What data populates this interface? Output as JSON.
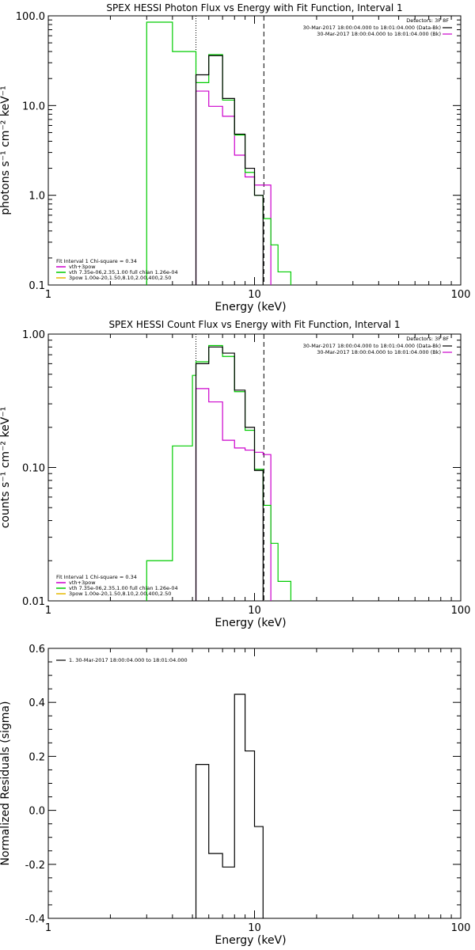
{
  "colors": {
    "total": "#000000",
    "vth_3pow": "#cc00cc",
    "vth": "#00cc00",
    "3pow": "#e6b800"
  },
  "chart_data": [
    {
      "type": "line",
      "title": "SPEX HESSI Photon Flux vs Energy with Fit Function, Interval 1",
      "xlabel": "Energy (keV)",
      "ylabel": "photons s⁻¹ cm⁻² keV⁻¹",
      "xscale": "log",
      "yscale": "log",
      "xlim": [
        1,
        100
      ],
      "ylim": [
        0.1,
        100
      ],
      "xticklabels": [
        "1",
        "10",
        "100"
      ],
      "yticks": [
        0.1,
        1,
        10,
        100
      ],
      "yticklabels": [
        "0.1",
        "1.0",
        "10.0",
        "100.0"
      ],
      "fit_range_keV": [
        5.2,
        11.1
      ],
      "bin_edges_keV": [
        3,
        4,
        5,
        5.2,
        6,
        7,
        8,
        9,
        10,
        11,
        12,
        13,
        15
      ],
      "series": [
        {
          "name": "vth+3pow",
          "color_key": "vth_3pow",
          "x0": 5.2,
          "values": [
            14.5,
            9.8,
            7.6,
            2.8,
            1.6,
            1.3,
            1.3
          ]
        },
        {
          "name": "vth 7.35e-06,2.35,1.00  full chian 1.26e-04",
          "color_key": "vth",
          "x0": 3,
          "values": [
            85,
            40,
            40,
            18,
            37,
            11.5,
            4.7,
            1.8,
            1.0,
            0.55,
            0.28,
            0.14
          ]
        },
        {
          "name": "3pow 1.00e-20,1.50,8.10,2.00,400,2.50",
          "color_key": "3pow",
          "x0": 5.2,
          "values": []
        },
        {
          "name": "data",
          "color_key": "total",
          "x0": 5.2,
          "values": [
            22,
            36,
            12,
            4.8,
            2.0,
            1.0
          ]
        }
      ],
      "legend_right": {
        "title": "Detectors: 3F 8F",
        "rows": [
          "30-Mar-2017 18:00:04.000 to 18:01:04.000 (Data-Bk)",
          "30-Mar-2017 18:00:04.000 to 18:01:04.000 (Bk)"
        ]
      },
      "legend_left": {
        "title": "Fit Interval 1    Chi-square = 0.34"
      }
    },
    {
      "type": "line",
      "title": "SPEX HESSI Count Flux vs Energy with Fit Function, Interval 1",
      "xlabel": "Energy (keV)",
      "ylabel": "counts s⁻¹ cm⁻² keV⁻¹",
      "xscale": "log",
      "yscale": "log",
      "xlim": [
        1,
        100
      ],
      "ylim": [
        0.01,
        1
      ],
      "xticklabels": [
        "1",
        "10",
        "100"
      ],
      "yticks": [
        0.01,
        0.1,
        1
      ],
      "yticklabels": [
        "0.01",
        "0.10",
        "1.00"
      ],
      "fit_range_keV": [
        5.2,
        11.1
      ],
      "bin_edges_keV": [
        3,
        4,
        5,
        5.2,
        6,
        7,
        8,
        9,
        10,
        11,
        12,
        13,
        15
      ],
      "series": [
        {
          "name": "vth+3pow",
          "color_key": "vth_3pow",
          "x0": 5.2,
          "values": [
            0.39,
            0.31,
            0.16,
            0.14,
            0.135,
            0.13,
            0.125
          ]
        },
        {
          "name": "vth 7.35e-06,2.35,1.00  full chian 1.26e-04",
          "color_key": "vth",
          "x0": 3,
          "values": [
            0.02,
            0.145,
            0.49,
            0.62,
            0.82,
            0.68,
            0.37,
            0.19,
            0.097,
            0.052,
            0.027,
            0.014
          ]
        },
        {
          "name": "3pow 1.00e-20,1.50,8.10,2.00,400,2.50",
          "color_key": "3pow",
          "x0": 5.2,
          "values": []
        },
        {
          "name": "data",
          "color_key": "total",
          "x0": 5.2,
          "values": [
            0.6,
            0.8,
            0.72,
            0.38,
            0.2,
            0.095
          ]
        }
      ],
      "legend_right": {
        "title": "Detectors: 3F 8F",
        "rows": [
          "30-Mar-2017 18:00:04.000 to 18:01:04.000 (Data-Bk)",
          "30-Mar-2017 18:00:04.000 to 18:01:04.000 (Bk)"
        ]
      },
      "legend_left": {
        "title": "Fit Interval 1    Chi-square = 0.34"
      }
    },
    {
      "type": "line",
      "title": "",
      "xlabel": "Energy (keV)",
      "ylabel": "Normalized Residuals (sigma)",
      "xscale": "log",
      "yscale": "linear",
      "xlim": [
        1,
        100
      ],
      "ylim": [
        -0.4,
        0.6
      ],
      "xticklabels": [
        "1",
        "10",
        "100"
      ],
      "yticks": [
        -0.4,
        -0.2,
        0.0,
        0.2,
        0.4,
        0.6
      ],
      "yticklabels": [
        "-0.4",
        "-0.2",
        "0.0",
        "0.2",
        "0.4",
        "0.6"
      ],
      "bin_edges_keV": [
        5.2,
        6,
        7,
        8,
        9,
        10,
        11
      ],
      "series": [
        {
          "name": "1. 30-Mar-2017 18:00:04.000 to 18:01:04.000",
          "color_key": "total",
          "values": [
            0.17,
            -0.16,
            -0.21,
            0.43,
            0.22,
            -0.06
          ]
        }
      ]
    }
  ]
}
